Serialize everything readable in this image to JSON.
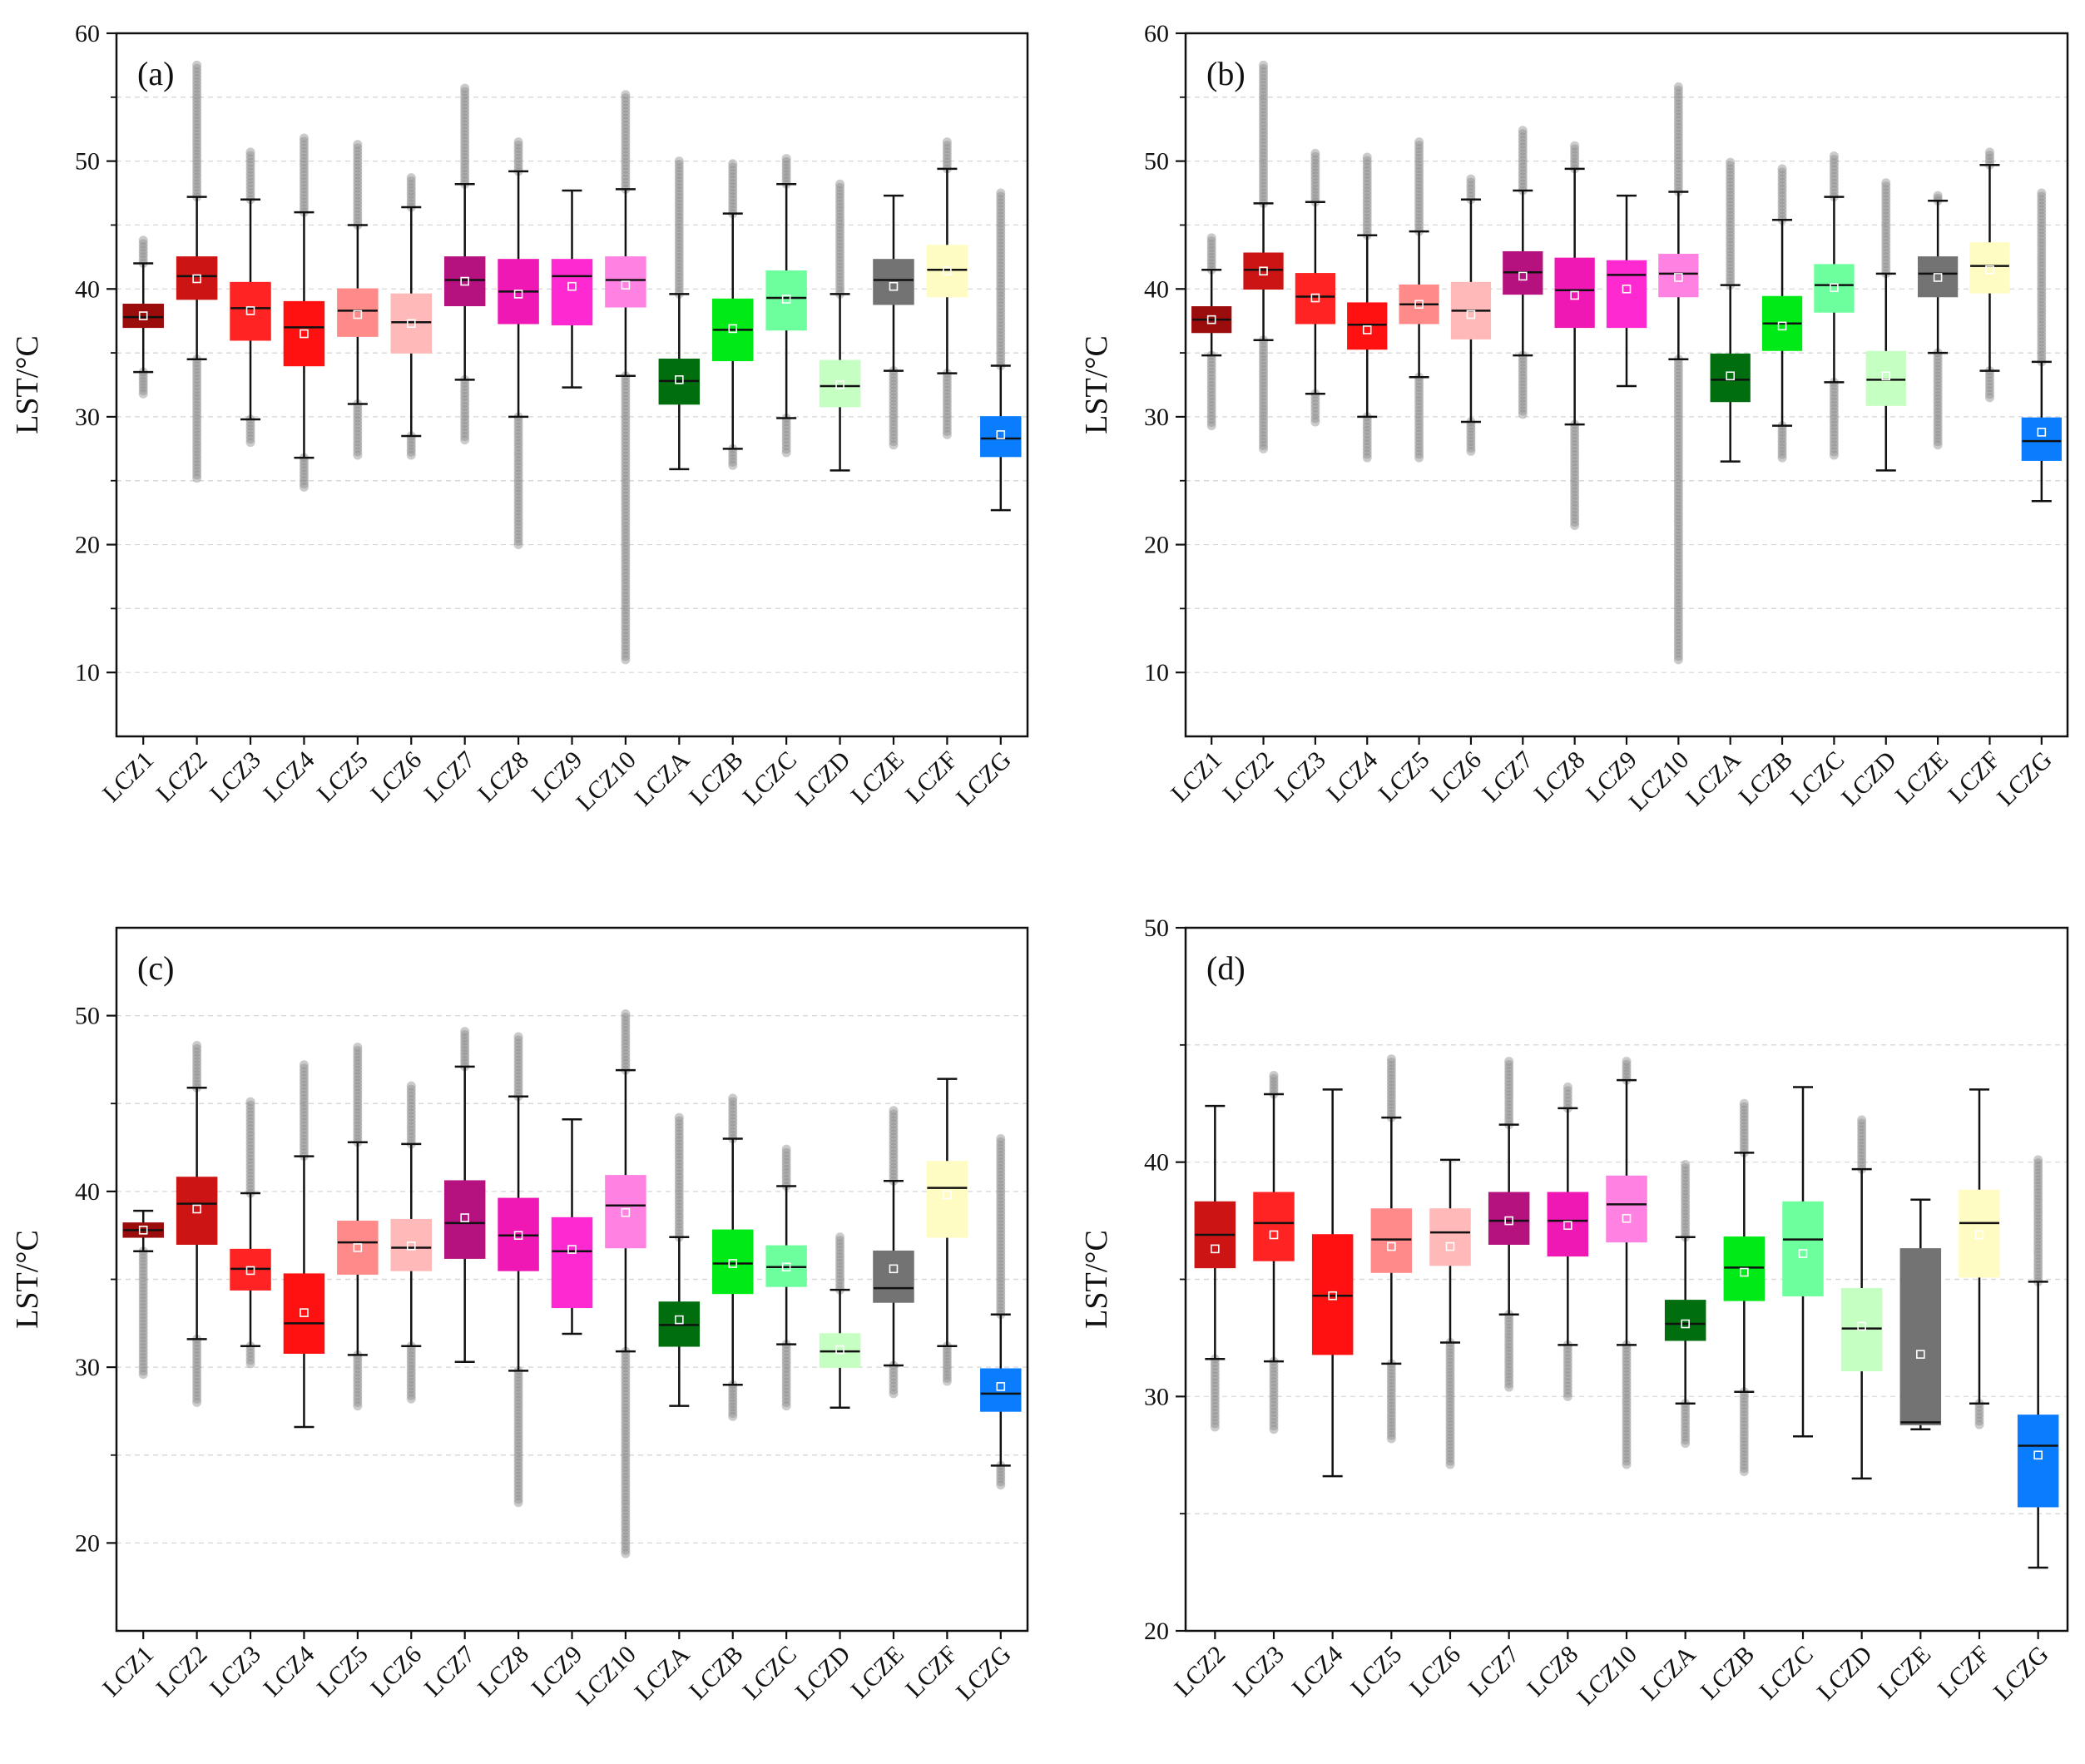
{
  "figure": {
    "y_axis_label": "LST/°C"
  },
  "chart_data": [
    {
      "type": "box",
      "panel_label": "(a)",
      "ylabel": "LST/°C",
      "ylim": [
        5,
        60
      ],
      "yticks": [
        10,
        20,
        30,
        40,
        50,
        60
      ],
      "categories": [
        "LCZ1",
        "LCZ2",
        "LCZ3",
        "LCZ4",
        "LCZ5",
        "LCZ6",
        "LCZ7",
        "LCZ8",
        "LCZ9",
        "LCZ10",
        "LCZA",
        "LCZB",
        "LCZC",
        "LCZD",
        "LCZE",
        "LCZF",
        "LCZG"
      ],
      "colors": [
        "#9b0d0d",
        "#cc1414",
        "#ff2323",
        "#ff1111",
        "#ff8a8a",
        "#ffb9b9",
        "#b5127f",
        "#f018b4",
        "#ff29d2",
        "#ff82e2",
        "#006e0e",
        "#00ea17",
        "#6dff9e",
        "#c6ffc2",
        "#737373",
        "#fffcc3",
        "#0a7dff"
      ],
      "boxes": [
        {
          "whislo": 33.5,
          "q1": 37.0,
          "med": 37.8,
          "q3": 38.8,
          "whishi": 42.0,
          "mean": 37.9,
          "out_lo": 31.8,
          "out_hi": 43.8
        },
        {
          "whislo": 34.5,
          "q1": 39.2,
          "med": 41.0,
          "q3": 42.5,
          "whishi": 47.2,
          "mean": 40.8,
          "out_lo": 25.2,
          "out_hi": 57.5
        },
        {
          "whislo": 29.8,
          "q1": 36.0,
          "med": 38.5,
          "q3": 40.5,
          "whishi": 47.0,
          "mean": 38.3,
          "out_lo": 28.0,
          "out_hi": 50.7
        },
        {
          "whislo": 26.8,
          "q1": 34.0,
          "med": 37.0,
          "q3": 39.0,
          "whishi": 46.0,
          "mean": 36.5,
          "out_lo": 24.5,
          "out_hi": 51.8
        },
        {
          "whislo": 31.0,
          "q1": 36.3,
          "med": 38.3,
          "q3": 40.0,
          "whishi": 45.0,
          "mean": 38.0,
          "out_lo": 27.0,
          "out_hi": 51.3
        },
        {
          "whislo": 28.5,
          "q1": 35.0,
          "med": 37.4,
          "q3": 39.6,
          "whishi": 46.4,
          "mean": 37.3,
          "out_lo": 27.0,
          "out_hi": 48.7
        },
        {
          "whislo": 32.9,
          "q1": 38.7,
          "med": 40.7,
          "q3": 42.5,
          "whishi": 48.2,
          "mean": 40.6,
          "out_lo": 28.2,
          "out_hi": 55.7
        },
        {
          "whislo": 30.0,
          "q1": 37.3,
          "med": 39.8,
          "q3": 42.3,
          "whishi": 49.2,
          "mean": 39.6,
          "out_lo": 20.0,
          "out_hi": 51.5
        },
        {
          "whislo": 32.3,
          "q1": 37.2,
          "med": 41.0,
          "q3": 42.3,
          "whishi": 47.7,
          "mean": 40.2,
          "out_lo": null,
          "out_hi": null
        },
        {
          "whislo": 33.2,
          "q1": 38.6,
          "med": 40.7,
          "q3": 42.5,
          "whishi": 47.8,
          "mean": 40.3,
          "out_lo": 11.0,
          "out_hi": 55.2
        },
        {
          "whislo": 25.9,
          "q1": 31.0,
          "med": 32.8,
          "q3": 34.5,
          "whishi": 39.6,
          "mean": 32.9,
          "out_lo": null,
          "out_hi": 50.0
        },
        {
          "whislo": 27.5,
          "q1": 34.4,
          "med": 36.8,
          "q3": 39.2,
          "whishi": 45.9,
          "mean": 36.9,
          "out_lo": 26.2,
          "out_hi": 49.8
        },
        {
          "whislo": 29.9,
          "q1": 36.8,
          "med": 39.3,
          "q3": 41.4,
          "whishi": 48.2,
          "mean": 39.2,
          "out_lo": 27.2,
          "out_hi": 50.2
        },
        {
          "whislo": 25.8,
          "q1": 30.8,
          "med": 32.4,
          "q3": 34.4,
          "whishi": 39.6,
          "mean": 32.5,
          "out_lo": null,
          "out_hi": 48.2
        },
        {
          "whislo": 33.6,
          "q1": 38.8,
          "med": 40.7,
          "q3": 42.3,
          "whishi": 47.3,
          "mean": 40.2,
          "out_lo": 27.8,
          "out_hi": null
        },
        {
          "whislo": 33.4,
          "q1": 39.4,
          "med": 41.5,
          "q3": 43.4,
          "whishi": 49.4,
          "mean": 41.4,
          "out_lo": 28.6,
          "out_hi": 51.5
        },
        {
          "whislo": 22.7,
          "q1": 26.9,
          "med": 28.3,
          "q3": 30.0,
          "whishi": 34.0,
          "mean": 28.6,
          "out_lo": null,
          "out_hi": 47.5
        }
      ]
    },
    {
      "type": "box",
      "panel_label": "(b)",
      "ylabel": "LST/°C",
      "ylim": [
        5,
        60
      ],
      "yticks": [
        10,
        20,
        30,
        40,
        50,
        60
      ],
      "categories": [
        "LCZ1",
        "LCZ2",
        "LCZ3",
        "LCZ4",
        "LCZ5",
        "LCZ6",
        "LCZ7",
        "LCZ8",
        "LCZ9",
        "LCZ10",
        "LCZA",
        "LCZB",
        "LCZC",
        "LCZD",
        "LCZE",
        "LCZF",
        "LCZG"
      ],
      "colors": [
        "#9b0d0d",
        "#cc1414",
        "#ff2323",
        "#ff1111",
        "#ff8a8a",
        "#ffb9b9",
        "#b5127f",
        "#f018b4",
        "#ff29d2",
        "#ff82e2",
        "#006e0e",
        "#00ea17",
        "#6dff9e",
        "#c6ffc2",
        "#737373",
        "#fffcc3",
        "#0a7dff"
      ],
      "boxes": [
        {
          "whislo": 34.8,
          "q1": 36.6,
          "med": 37.6,
          "q3": 38.6,
          "whishi": 41.5,
          "mean": 37.6,
          "out_lo": 29.3,
          "out_hi": 44.0
        },
        {
          "whislo": 36.0,
          "q1": 40.0,
          "med": 41.5,
          "q3": 42.8,
          "whishi": 46.7,
          "mean": 41.4,
          "out_lo": 27.5,
          "out_hi": 57.5
        },
        {
          "whislo": 31.8,
          "q1": 37.3,
          "med": 39.4,
          "q3": 41.2,
          "whishi": 46.8,
          "mean": 39.3,
          "out_lo": 29.6,
          "out_hi": 50.6
        },
        {
          "whislo": 30.0,
          "q1": 35.3,
          "med": 37.2,
          "q3": 38.9,
          "whishi": 44.2,
          "mean": 36.8,
          "out_lo": 26.8,
          "out_hi": 50.3
        },
        {
          "whislo": 33.1,
          "q1": 37.3,
          "med": 38.8,
          "q3": 40.3,
          "whishi": 44.5,
          "mean": 38.8,
          "out_lo": 26.8,
          "out_hi": 51.5
        },
        {
          "whislo": 29.6,
          "q1": 36.1,
          "med": 38.3,
          "q3": 40.5,
          "whishi": 47.0,
          "mean": 38.0,
          "out_lo": 27.3,
          "out_hi": 48.6
        },
        {
          "whislo": 34.8,
          "q1": 39.6,
          "med": 41.3,
          "q3": 42.9,
          "whishi": 47.7,
          "mean": 41.0,
          "out_lo": 30.2,
          "out_hi": 52.4
        },
        {
          "whislo": 29.4,
          "q1": 37.0,
          "med": 39.9,
          "q3": 42.4,
          "whishi": 49.4,
          "mean": 39.5,
          "out_lo": 21.5,
          "out_hi": 51.2
        },
        {
          "whislo": 32.4,
          "q1": 37.0,
          "med": 41.1,
          "q3": 42.2,
          "whishi": 47.3,
          "mean": 40.0,
          "out_lo": null,
          "out_hi": null
        },
        {
          "whislo": 34.5,
          "q1": 39.4,
          "med": 41.2,
          "q3": 42.7,
          "whishi": 47.6,
          "mean": 40.9,
          "out_lo": 11.0,
          "out_hi": 55.8
        },
        {
          "whislo": 26.5,
          "q1": 31.2,
          "med": 32.9,
          "q3": 34.9,
          "whishi": 40.3,
          "mean": 33.2,
          "out_lo": null,
          "out_hi": 49.9
        },
        {
          "whislo": 29.3,
          "q1": 35.2,
          "med": 37.3,
          "q3": 39.4,
          "whishi": 45.4,
          "mean": 37.1,
          "out_lo": 26.8,
          "out_hi": 49.4
        },
        {
          "whislo": 32.7,
          "q1": 38.2,
          "med": 40.3,
          "q3": 41.9,
          "whishi": 47.2,
          "mean": 40.1,
          "out_lo": 27.0,
          "out_hi": 50.4
        },
        {
          "whislo": 25.8,
          "q1": 30.9,
          "med": 32.9,
          "q3": 35.1,
          "whishi": 41.2,
          "mean": 33.2,
          "out_lo": null,
          "out_hi": 48.3
        },
        {
          "whislo": 35.0,
          "q1": 39.4,
          "med": 41.2,
          "q3": 42.5,
          "whishi": 46.9,
          "mean": 40.9,
          "out_lo": 27.8,
          "out_hi": 47.3
        },
        {
          "whislo": 33.6,
          "q1": 39.7,
          "med": 41.8,
          "q3": 43.6,
          "whishi": 49.7,
          "mean": 41.5,
          "out_lo": 31.5,
          "out_hi": 50.7
        },
        {
          "whislo": 23.4,
          "q1": 26.6,
          "med": 28.1,
          "q3": 29.9,
          "whishi": 34.3,
          "mean": 28.8,
          "out_lo": null,
          "out_hi": 47.5
        }
      ]
    },
    {
      "type": "box",
      "panel_label": "(c)",
      "ylabel": "LST/°C",
      "ylim": [
        15,
        55
      ],
      "yticks": [
        20,
        30,
        40,
        50
      ],
      "categories": [
        "LCZ1",
        "LCZ2",
        "LCZ3",
        "LCZ4",
        "LCZ5",
        "LCZ6",
        "LCZ7",
        "LCZ8",
        "LCZ9",
        "LCZ10",
        "LCZA",
        "LCZB",
        "LCZC",
        "LCZD",
        "LCZE",
        "LCZF",
        "LCZG"
      ],
      "colors": [
        "#9b0d0d",
        "#cc1414",
        "#ff2323",
        "#ff1111",
        "#ff8a8a",
        "#ffb9b9",
        "#b5127f",
        "#f018b4",
        "#ff29d2",
        "#ff82e2",
        "#006e0e",
        "#00ea17",
        "#6dff9e",
        "#c6ffc2",
        "#737373",
        "#fffcc3",
        "#0a7dff"
      ],
      "boxes": [
        {
          "whislo": 36.6,
          "q1": 37.4,
          "med": 37.8,
          "q3": 38.2,
          "whishi": 38.9,
          "mean": 37.8,
          "out_lo": 29.6,
          "out_hi": null
        },
        {
          "whislo": 31.6,
          "q1": 37.0,
          "med": 39.3,
          "q3": 40.8,
          "whishi": 45.9,
          "mean": 39.0,
          "out_lo": 28.0,
          "out_hi": 48.3
        },
        {
          "whislo": 31.2,
          "q1": 34.4,
          "med": 35.6,
          "q3": 36.7,
          "whishi": 39.9,
          "mean": 35.5,
          "out_lo": 30.2,
          "out_hi": 45.1
        },
        {
          "whislo": 26.6,
          "q1": 30.8,
          "med": 32.5,
          "q3": 35.3,
          "whishi": 42.0,
          "mean": 33.1,
          "out_lo": null,
          "out_hi": 47.2
        },
        {
          "whislo": 30.7,
          "q1": 35.3,
          "med": 37.1,
          "q3": 38.3,
          "whishi": 42.8,
          "mean": 36.8,
          "out_lo": 27.8,
          "out_hi": 48.2
        },
        {
          "whislo": 31.2,
          "q1": 35.5,
          "med": 36.8,
          "q3": 38.4,
          "whishi": 42.7,
          "mean": 36.9,
          "out_lo": 28.2,
          "out_hi": 46.0
        },
        {
          "whislo": 30.3,
          "q1": 36.2,
          "med": 38.2,
          "q3": 40.6,
          "whishi": 47.1,
          "mean": 38.5,
          "out_lo": null,
          "out_hi": 49.1
        },
        {
          "whislo": 29.8,
          "q1": 35.5,
          "med": 37.5,
          "q3": 39.6,
          "whishi": 45.4,
          "mean": 37.5,
          "out_lo": 22.3,
          "out_hi": 48.8
        },
        {
          "whislo": 31.9,
          "q1": 33.4,
          "med": 36.6,
          "q3": 38.5,
          "whishi": 44.1,
          "mean": 36.7,
          "out_lo": null,
          "out_hi": null
        },
        {
          "whislo": 30.9,
          "q1": 36.8,
          "med": 39.2,
          "q3": 40.9,
          "whishi": 46.9,
          "mean": 38.8,
          "out_lo": 19.4,
          "out_hi": 50.1
        },
        {
          "whislo": 27.8,
          "q1": 31.2,
          "med": 32.4,
          "q3": 33.7,
          "whishi": 37.4,
          "mean": 32.7,
          "out_lo": null,
          "out_hi": 44.2
        },
        {
          "whislo": 29.0,
          "q1": 34.2,
          "med": 35.9,
          "q3": 37.8,
          "whishi": 43.0,
          "mean": 35.9,
          "out_lo": 27.2,
          "out_hi": 45.3
        },
        {
          "whislo": 31.3,
          "q1": 34.6,
          "med": 35.7,
          "q3": 36.9,
          "whishi": 40.3,
          "mean": 35.7,
          "out_lo": 27.8,
          "out_hi": 42.4
        },
        {
          "whislo": 27.7,
          "q1": 30.0,
          "med": 30.9,
          "q3": 31.9,
          "whishi": 34.4,
          "mean": 31.0,
          "out_lo": null,
          "out_hi": 37.4
        },
        {
          "whislo": 30.1,
          "q1": 33.7,
          "med": 34.5,
          "q3": 36.6,
          "whishi": 40.6,
          "mean": 35.6,
          "out_lo": 28.5,
          "out_hi": 44.6
        },
        {
          "whislo": 31.2,
          "q1": 37.4,
          "med": 40.2,
          "q3": 41.7,
          "whishi": 46.4,
          "mean": 39.8,
          "out_lo": 29.2,
          "out_hi": null
        },
        {
          "whislo": 24.4,
          "q1": 27.5,
          "med": 28.5,
          "q3": 29.9,
          "whishi": 33.0,
          "mean": 28.9,
          "out_lo": 23.3,
          "out_hi": 43.0
        }
      ]
    },
    {
      "type": "box",
      "panel_label": "(d)",
      "ylabel": "LST/°C",
      "ylim": [
        20,
        50
      ],
      "yticks": [
        20,
        30,
        40,
        50
      ],
      "categories": [
        "LCZ2",
        "LCZ3",
        "LCZ4",
        "LCZ5",
        "LCZ6",
        "LCZ7",
        "LCZ8",
        "LCZ10",
        "LCZA",
        "LCZB",
        "LCZC",
        "LCZD",
        "LCZE",
        "LCZF",
        "LCZG"
      ],
      "colors": [
        "#cc1414",
        "#ff2323",
        "#ff1111",
        "#ff8a8a",
        "#ffb9b9",
        "#b5127f",
        "#f018b4",
        "#ff82e2",
        "#006e0e",
        "#00ea17",
        "#6dff9e",
        "#c6ffc2",
        "#737373",
        "#fffcc3",
        "#0a7dff"
      ],
      "boxes": [
        {
          "whislo": 31.6,
          "q1": 35.5,
          "med": 36.9,
          "q3": 38.3,
          "whishi": 42.4,
          "mean": 36.3,
          "out_lo": 28.7,
          "out_hi": null
        },
        {
          "whislo": 31.5,
          "q1": 35.8,
          "med": 37.4,
          "q3": 38.7,
          "whishi": 42.9,
          "mean": 36.9,
          "out_lo": 28.6,
          "out_hi": 43.7
        },
        {
          "whislo": 26.6,
          "q1": 31.8,
          "med": 34.3,
          "q3": 36.9,
          "whishi": 43.1,
          "mean": 34.3,
          "out_lo": null,
          "out_hi": null
        },
        {
          "whislo": 31.4,
          "q1": 35.3,
          "med": 36.7,
          "q3": 38.0,
          "whishi": 41.9,
          "mean": 36.4,
          "out_lo": 28.2,
          "out_hi": 44.4
        },
        {
          "whislo": 32.3,
          "q1": 35.6,
          "med": 37.0,
          "q3": 38.0,
          "whishi": 40.1,
          "mean": 36.4,
          "out_lo": 27.1,
          "out_hi": null
        },
        {
          "whislo": 33.5,
          "q1": 36.5,
          "med": 37.5,
          "q3": 38.7,
          "whishi": 41.6,
          "mean": 37.5,
          "out_lo": 30.4,
          "out_hi": 44.3
        },
        {
          "whislo": 32.2,
          "q1": 36.0,
          "med": 37.5,
          "q3": 38.7,
          "whishi": 42.3,
          "mean": 37.3,
          "out_lo": 30.0,
          "out_hi": 43.2
        },
        {
          "whislo": 32.2,
          "q1": 36.6,
          "med": 38.2,
          "q3": 39.4,
          "whishi": 43.5,
          "mean": 37.6,
          "out_lo": 27.1,
          "out_hi": 44.3
        },
        {
          "whislo": 29.7,
          "q1": 32.4,
          "med": 33.1,
          "q3": 34.1,
          "whishi": 36.8,
          "mean": 33.1,
          "out_lo": 28.0,
          "out_hi": 39.9
        },
        {
          "whislo": 30.2,
          "q1": 34.1,
          "med": 35.5,
          "q3": 36.8,
          "whishi": 40.4,
          "mean": 35.3,
          "out_lo": 26.8,
          "out_hi": 42.5
        },
        {
          "whislo": 28.3,
          "q1": 34.3,
          "med": 36.7,
          "q3": 38.3,
          "whishi": 43.2,
          "mean": 36.1,
          "out_lo": null,
          "out_hi": null
        },
        {
          "whislo": 26.5,
          "q1": 31.1,
          "med": 32.9,
          "q3": 34.6,
          "whishi": 39.7,
          "mean": 33.0,
          "out_lo": null,
          "out_hi": 41.8
        },
        {
          "whislo": 28.6,
          "q1": 28.8,
          "med": 28.9,
          "q3": 36.3,
          "whishi": 38.4,
          "mean": 31.8,
          "out_lo": null,
          "out_hi": null
        },
        {
          "whislo": 29.7,
          "q1": 35.1,
          "med": 37.4,
          "q3": 38.8,
          "whishi": 43.1,
          "mean": 36.9,
          "out_lo": 28.8,
          "out_hi": null
        },
        {
          "whislo": 22.7,
          "q1": 25.3,
          "med": 27.9,
          "q3": 29.2,
          "whishi": 34.9,
          "mean": 27.5,
          "out_lo": null,
          "out_hi": 40.1
        }
      ]
    }
  ]
}
